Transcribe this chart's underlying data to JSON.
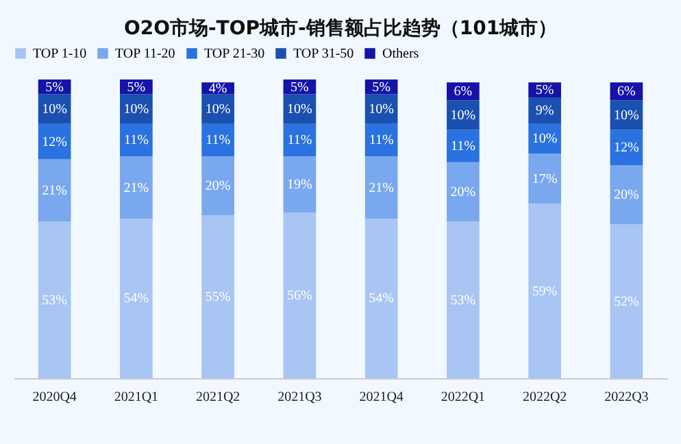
{
  "chart_data": {
    "type": "bar",
    "stacked": true,
    "title": "O2O市场-TOP城市-销售额占比趋势（101城市）",
    "legend": "top",
    "categories": [
      "2020Q4",
      "2021Q1",
      "2021Q2",
      "2021Q3",
      "2021Q4",
      "2022Q1",
      "2022Q2",
      "2022Q3"
    ],
    "series": [
      {
        "name": "TOP 1-10",
        "color": "#a8c5f3",
        "values": [
          53,
          54,
          55,
          56,
          54,
          53,
          59,
          52
        ],
        "value_labels": [
          "53%",
          "54%",
          "55%",
          "56%",
          "54%",
          "53%",
          "59%",
          "52%"
        ]
      },
      {
        "name": "TOP 11-20",
        "color": "#7aa8ee",
        "values": [
          21,
          21,
          20,
          19,
          21,
          20,
          17,
          20
        ],
        "value_labels": [
          "21%",
          "21%",
          "20%",
          "19%",
          "21%",
          "20%",
          "17%",
          "20%"
        ]
      },
      {
        "name": "TOP 21-30",
        "color": "#2a72e0",
        "values": [
          12,
          11,
          11,
          11,
          11,
          11,
          10,
          12
        ],
        "value_labels": [
          "12%",
          "11%",
          "11%",
          "11%",
          "11%",
          "11%",
          "10%",
          "12%"
        ]
      },
      {
        "name": "TOP 31-50",
        "color": "#1a50b0",
        "values": [
          10,
          10,
          10,
          10,
          10,
          10,
          9,
          10
        ],
        "value_labels": [
          "10%",
          "10%",
          "10%",
          "10%",
          "10%",
          "10%",
          "9%",
          "10%"
        ]
      },
      {
        "name": "Others",
        "color": "#1414a8",
        "values": [
          5,
          5,
          4,
          5,
          5,
          6,
          5,
          6
        ],
        "value_labels": [
          "5%",
          "5%",
          "4%",
          "5%",
          "5%",
          "6%",
          "5%",
          "6%"
        ]
      }
    ]
  }
}
